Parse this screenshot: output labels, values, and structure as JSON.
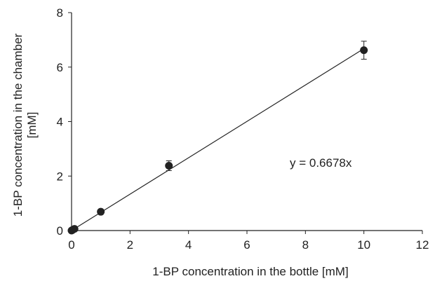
{
  "chart_data": {
    "type": "scatter",
    "xlabel": "1-BP concentration in the bottle [mM]",
    "ylabel_lines": [
      "1-BP concentration in the chamber",
      "[mM]"
    ],
    "xlim": [
      0,
      12
    ],
    "ylim": [
      0,
      8
    ],
    "x_ticks": [
      "0",
      "2",
      "4",
      "6",
      "8",
      "10",
      "12"
    ],
    "y_ticks": [
      "0",
      "2",
      "4",
      "6",
      "8"
    ],
    "grid": false,
    "series": [
      {
        "points": [
          {
            "x": 0.0,
            "y": 0.0,
            "err": 0.0
          },
          {
            "x": 0.03,
            "y": 0.02,
            "err": 0.0
          },
          {
            "x": 0.1,
            "y": 0.06,
            "err": 0.0
          },
          {
            "x": 1.0,
            "y": 0.69,
            "err": 0.05
          },
          {
            "x": 3.33,
            "y": 2.38,
            "err": 0.18
          },
          {
            "x": 10.0,
            "y": 6.62,
            "err": 0.33
          }
        ]
      }
    ],
    "trendline": {
      "slope": 0.6678,
      "intercept": 0,
      "x_range": [
        0,
        10
      ]
    },
    "annotation": "y = 0.6678x",
    "colors": {
      "marker": "#222222",
      "line": "#222222",
      "axis": "#222222"
    }
  }
}
